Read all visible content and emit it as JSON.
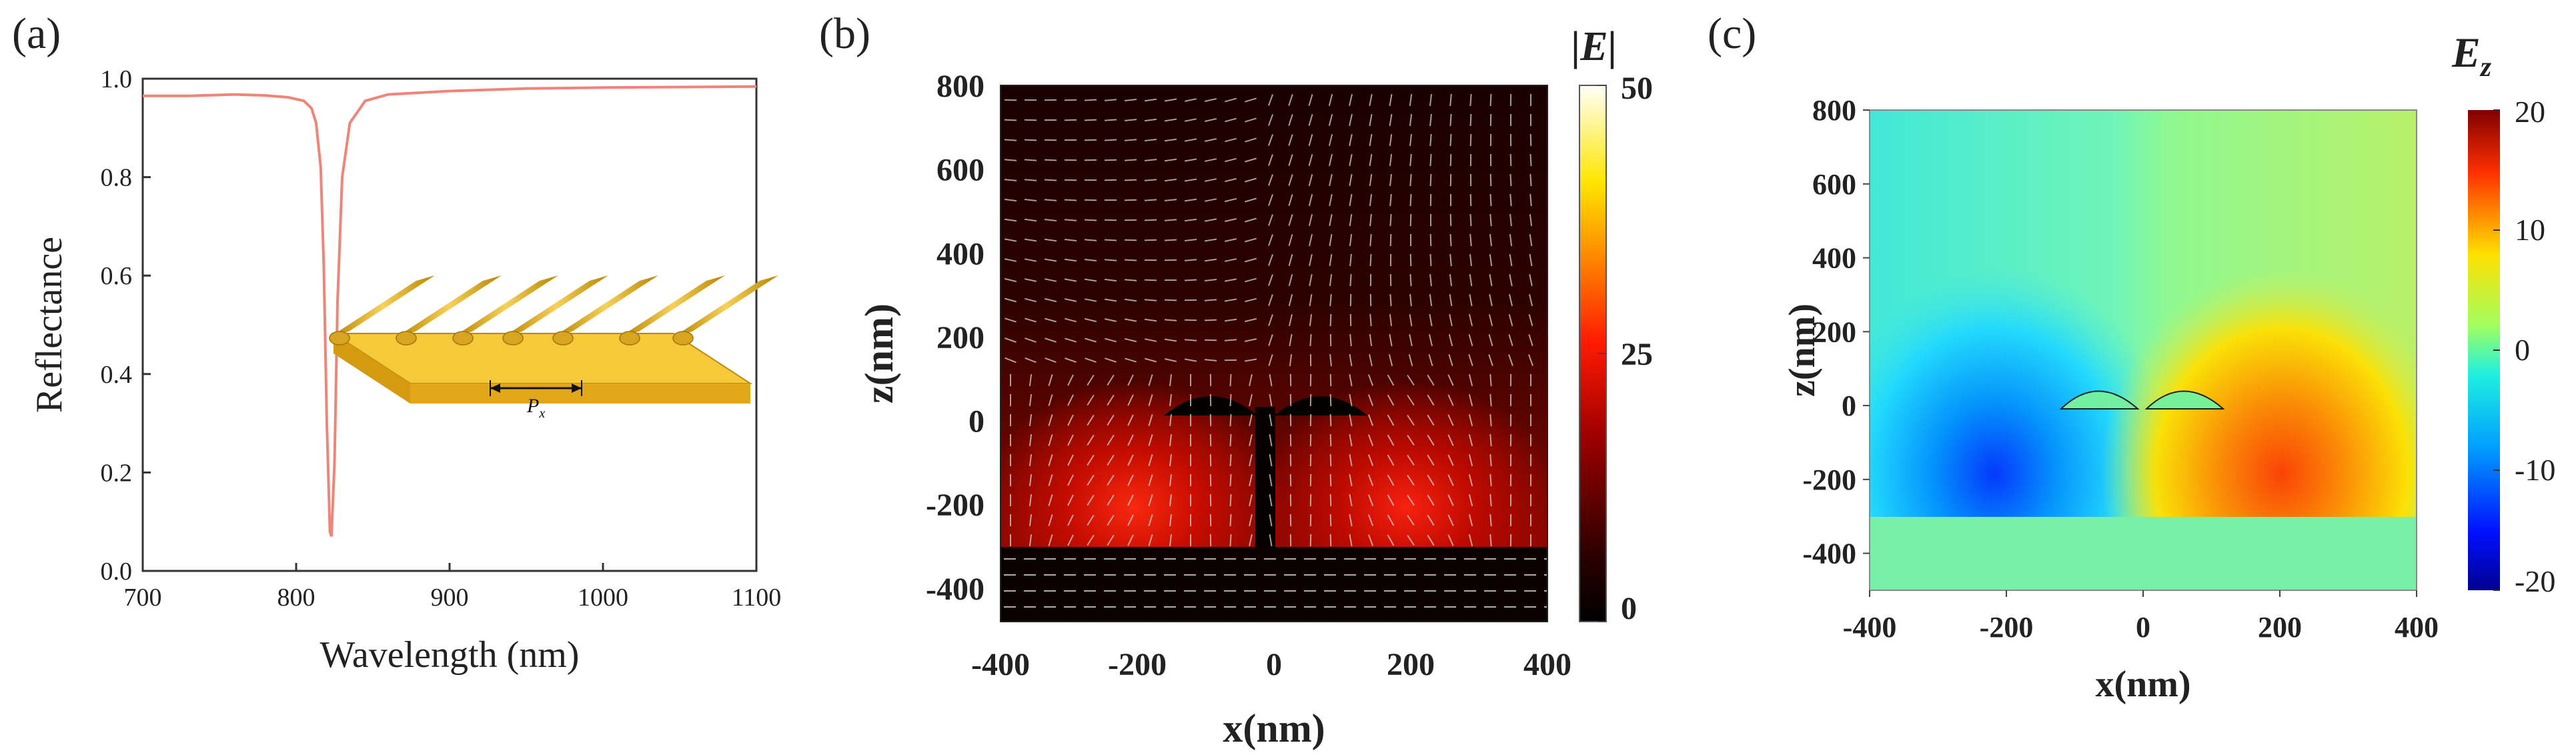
{
  "chart_data": [
    {
      "panel": "(a)",
      "type": "line",
      "title": "",
      "xlabel": "Wavelength (nm)",
      "ylabel": "Reflectance",
      "xlim": [
        700,
        1100
      ],
      "ylim": [
        0.0,
        1.0
      ],
      "xticks": [
        "700",
        "800",
        "900",
        "1000",
        "1100"
      ],
      "yticks": [
        "0.0",
        "0.2",
        "0.4",
        "0.6",
        "0.8",
        "1.0"
      ],
      "series": [
        {
          "name": "Reflectance",
          "color": "#f08478",
          "x": [
            700,
            730,
            760,
            780,
            795,
            805,
            810,
            813,
            816,
            818,
            820,
            822,
            823,
            825,
            827,
            830,
            835,
            845,
            860,
            900,
            950,
            1000,
            1050,
            1100
          ],
          "y": [
            0.965,
            0.965,
            0.968,
            0.966,
            0.962,
            0.955,
            0.94,
            0.91,
            0.82,
            0.62,
            0.3,
            0.08,
            0.07,
            0.22,
            0.55,
            0.8,
            0.91,
            0.955,
            0.968,
            0.975,
            0.98,
            0.982,
            0.983,
            0.984
          ]
        }
      ],
      "inset": {
        "label": "P",
        "subscript": "x",
        "description": "grating of gold cylinders on gold substrate"
      }
    },
    {
      "panel": "(b)",
      "type": "heatmap",
      "quantity": "|E|",
      "xlabel": "x(nm)",
      "ylabel": "z(nm)",
      "xlim": [
        -400,
        400
      ],
      "ylim": [
        -480,
        800
      ],
      "xticks": [
        "-400",
        "-200",
        "0",
        "200",
        "400"
      ],
      "yticks": [
        "800",
        "600",
        "400",
        "200",
        "0",
        "-200",
        "-400"
      ],
      "colorbar": {
        "title": "|E|",
        "min": 0,
        "max": 50,
        "ticks": [
          "50",
          "25",
          "0"
        ]
      }
    },
    {
      "panel": "(c)",
      "type": "heatmap",
      "quantity": "E_z",
      "xlabel": "x(nm)",
      "ylabel": "z(nm)",
      "xlim": [
        -400,
        400
      ],
      "ylim": [
        -500,
        800
      ],
      "xticks": [
        "-400",
        "-200",
        "0",
        "200",
        "400"
      ],
      "yticks": [
        "800",
        "600",
        "400",
        "200",
        "0",
        "-200",
        "-400"
      ],
      "colorbar": {
        "title": "E",
        "subscript": "z",
        "min": -20,
        "max": 20,
        "ticks": [
          "20",
          "10",
          "0",
          "-10",
          "-20"
        ]
      }
    }
  ],
  "labels": {
    "a": "(a)",
    "b": "(b)",
    "c": "(c)"
  },
  "colors": {
    "curve": "#f08478",
    "gold": "#f4c02a",
    "gold_dark": "#c98d10",
    "axis": "#333333"
  }
}
